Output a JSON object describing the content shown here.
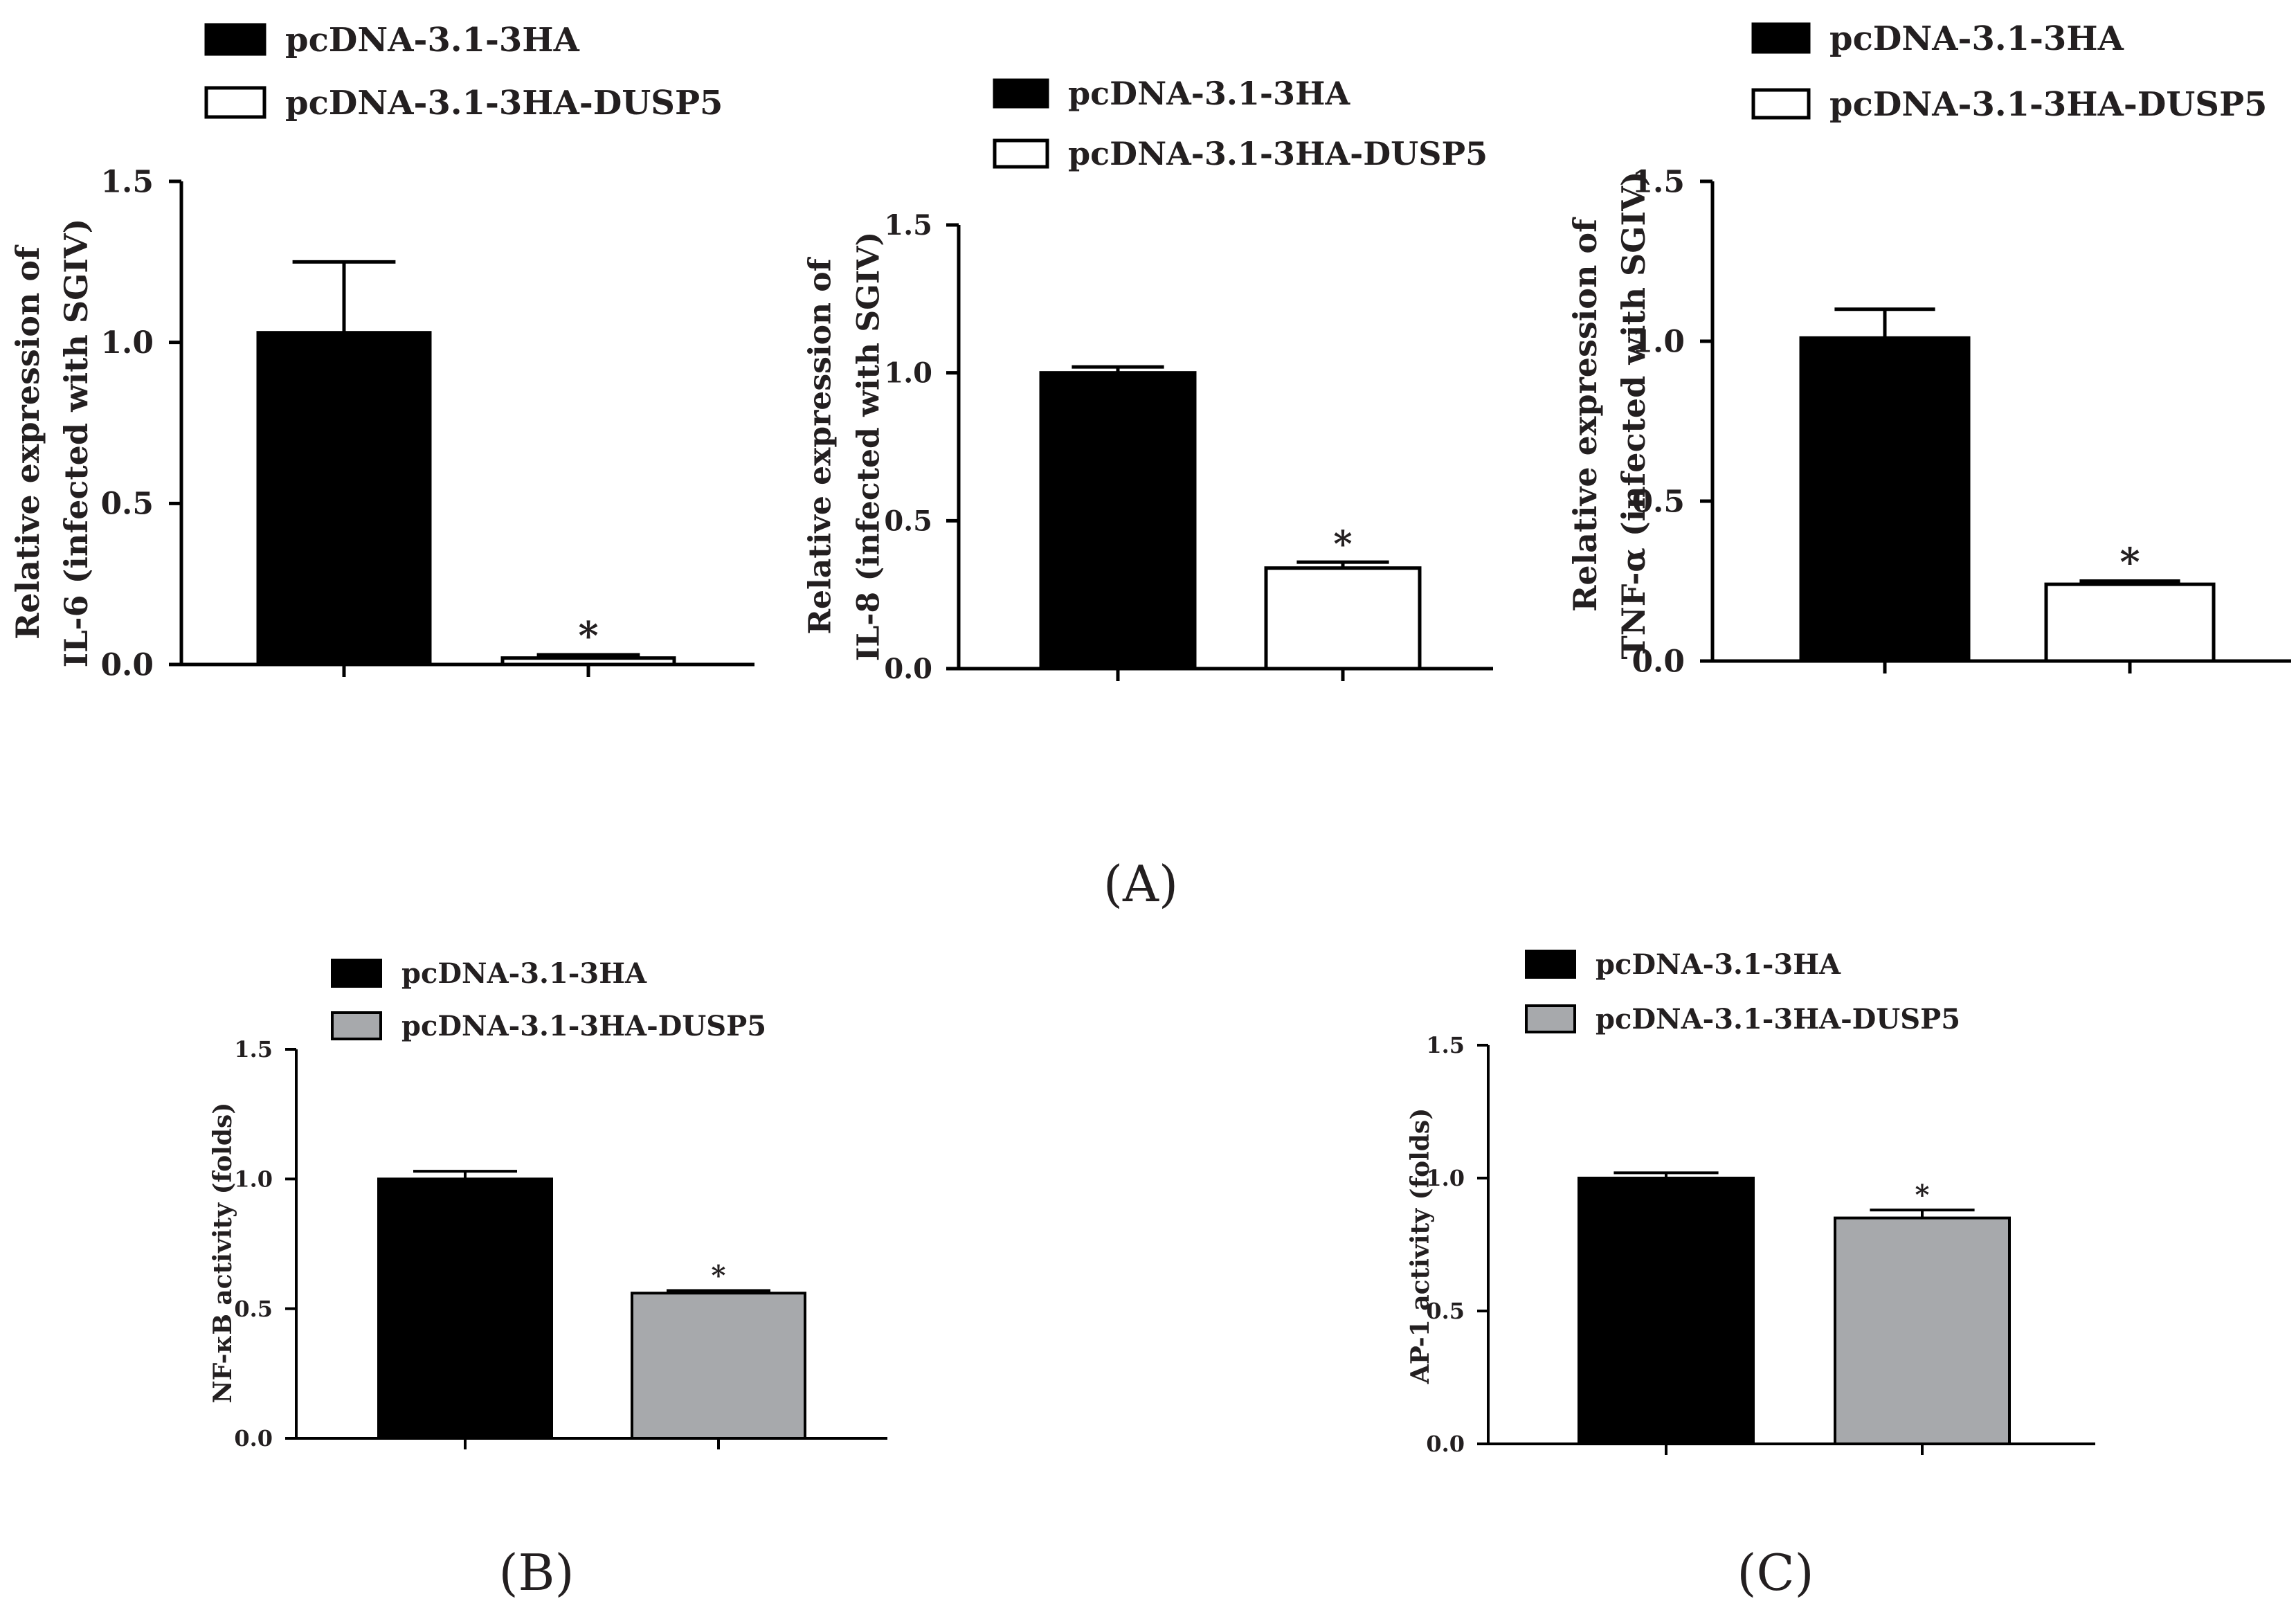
{
  "panel_labels": {
    "A": "(A)",
    "B": "(B)",
    "C": "(C)"
  },
  "chart_data": [
    {
      "type": "bar",
      "panel": "A",
      "categories": [
        "pcDNA-3.1-3HA",
        "pcDNA-3.1-3HA-DUSP5"
      ],
      "values": [
        1.03,
        0.02
      ],
      "errors": [
        0.22,
        0.01
      ],
      "significance": [
        "",
        "*"
      ],
      "colors": [
        "#000000",
        "#ffffff"
      ],
      "ylabel": [
        "Relative expression of",
        "IL-6 (infected with SGIV)"
      ],
      "ylim": [
        0,
        1.5
      ],
      "yticks": [
        0.0,
        0.5,
        1.0,
        1.5
      ],
      "ytick_labels": [
        "0.0",
        "0.5",
        "1.0",
        "1.5"
      ],
      "legend": {
        "placement": "top",
        "entries": [
          "pcDNA-3.1-3HA",
          "pcDNA-3.1-3HA-DUSP5"
        ]
      },
      "grid": false
    },
    {
      "type": "bar",
      "panel": "A",
      "categories": [
        "pcDNA-3.1-3HA",
        "pcDNA-3.1-3HA-DUSP5"
      ],
      "values": [
        1.0,
        0.34
      ],
      "errors": [
        0.02,
        0.02
      ],
      "significance": [
        "",
        "*"
      ],
      "colors": [
        "#000000",
        "#ffffff"
      ],
      "ylabel": [
        "Relative expression of",
        "IL-8 (infected with SGIV)"
      ],
      "ylim": [
        0,
        1.5
      ],
      "yticks": [
        0.0,
        0.5,
        1.0,
        1.5
      ],
      "ytick_labels": [
        "0.0",
        "0.5",
        "1.0",
        "1.5"
      ],
      "legend": {
        "placement": "top",
        "entries": [
          "pcDNA-3.1-3HA",
          "pcDNA-3.1-3HA-DUSP5"
        ]
      },
      "grid": false
    },
    {
      "type": "bar",
      "panel": "A",
      "categories": [
        "pcDNA-3.1-3HA",
        "pcDNA-3.1-3HA-DUSP5"
      ],
      "values": [
        1.01,
        0.24
      ],
      "errors": [
        0.09,
        0.01
      ],
      "significance": [
        "",
        "*"
      ],
      "colors": [
        "#000000",
        "#ffffff"
      ],
      "ylabel": [
        "Relative expression of",
        "TNF-α (infected with SGIV)"
      ],
      "ylim": [
        0,
        1.5
      ],
      "yticks": [
        0.0,
        0.5,
        1.0,
        1.5
      ],
      "ytick_labels": [
        "0.0",
        "0.5",
        "1.0",
        "1.5"
      ],
      "legend": {
        "placement": "top",
        "entries": [
          "pcDNA-3.1-3HA",
          "pcDNA-3.1-3HA-DUSP5"
        ]
      },
      "grid": false
    },
    {
      "type": "bar",
      "panel": "B",
      "categories": [
        "pcDNA-3.1-3HA",
        "pcDNA-3.1-3HA-DUSP5"
      ],
      "values": [
        1.0,
        0.56
      ],
      "errors": [
        0.03,
        0.01
      ],
      "significance": [
        "",
        "*"
      ],
      "colors": [
        "#000000",
        "#a7a9ac"
      ],
      "ylabel": [
        "NF-κB activity (folds)"
      ],
      "ylim": [
        0,
        1.5
      ],
      "yticks": [
        0.0,
        0.5,
        1.0,
        1.5
      ],
      "ytick_labels": [
        "0.0",
        "0.5",
        "1.0",
        "1.5"
      ],
      "legend": {
        "placement": "top",
        "entries": [
          "pcDNA-3.1-3HA",
          "pcDNA-3.1-3HA-DUSP5"
        ]
      },
      "grid": false
    },
    {
      "type": "bar",
      "panel": "C",
      "categories": [
        "pcDNA-3.1-3HA",
        "pcDNA-3.1-3HA-DUSP5"
      ],
      "values": [
        1.0,
        0.85
      ],
      "errors": [
        0.02,
        0.03
      ],
      "significance": [
        "",
        "*"
      ],
      "colors": [
        "#000000",
        "#a7a9ac"
      ],
      "ylabel": [
        "AP-1 activity (folds)"
      ],
      "ylim": [
        0,
        1.5
      ],
      "yticks": [
        0.0,
        0.5,
        1.0,
        1.5
      ],
      "ytick_labels": [
        "0.0",
        "0.5",
        "1.0",
        "1.5"
      ],
      "legend": {
        "placement": "top",
        "entries": [
          "pcDNA-3.1-3HA",
          "pcDNA-3.1-3HA-DUSP5"
        ]
      },
      "grid": false
    }
  ]
}
